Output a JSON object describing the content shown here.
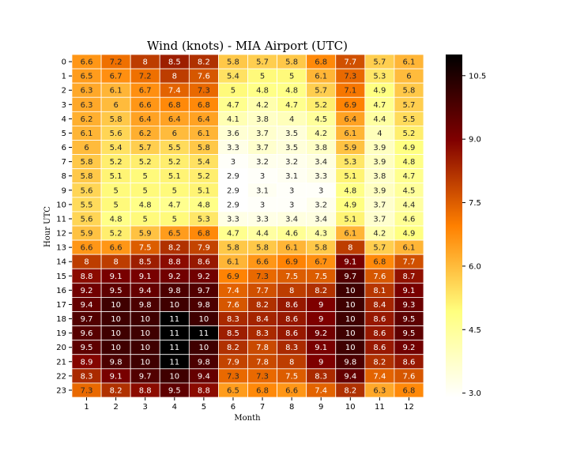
{
  "chart_data": {
    "type": "heatmap",
    "title": "Wind (knots) - MIA Airport (UTC)",
    "xlabel": "Month",
    "ylabel": "Hour UTC",
    "x_categories": [
      "1",
      "2",
      "3",
      "4",
      "5",
      "6",
      "7",
      "8",
      "9",
      "10",
      "11",
      "12"
    ],
    "y_categories": [
      "0",
      "1",
      "2",
      "3",
      "4",
      "5",
      "6",
      "7",
      "8",
      "9",
      "10",
      "11",
      "12",
      "13",
      "14",
      "15",
      "16",
      "17",
      "18",
      "19",
      "20",
      "21",
      "22",
      "23"
    ],
    "values": [
      [
        6.6,
        7.2,
        8,
        8.5,
        8.2,
        5.8,
        5.7,
        5.8,
        6.8,
        7.7,
        5.7,
        6.1
      ],
      [
        6.5,
        6.7,
        7.2,
        8,
        7.6,
        5.4,
        5,
        5,
        6.1,
        7.3,
        5.3,
        6
      ],
      [
        6.3,
        6.1,
        6.7,
        7.4,
        7.3,
        5,
        4.8,
        4.8,
        5.7,
        7.1,
        4.9,
        5.8
      ],
      [
        6.3,
        6,
        6.6,
        6.8,
        6.8,
        4.7,
        4.2,
        4.7,
        5.2,
        6.9,
        4.7,
        5.7
      ],
      [
        6.2,
        5.8,
        6.4,
        6.4,
        6.4,
        4.1,
        3.8,
        4,
        4.5,
        6.4,
        4.4,
        5.5
      ],
      [
        6.1,
        5.6,
        6.2,
        6,
        6.1,
        3.6,
        3.7,
        3.5,
        4.2,
        6.1,
        4,
        5.2
      ],
      [
        6,
        5.4,
        5.7,
        5.5,
        5.8,
        3.3,
        3.7,
        3.5,
        3.8,
        5.9,
        3.9,
        4.9
      ],
      [
        5.8,
        5.2,
        5.2,
        5.2,
        5.4,
        3,
        3.2,
        3.2,
        3.4,
        5.3,
        3.9,
        4.8
      ],
      [
        5.8,
        5.1,
        5,
        5.1,
        5.2,
        2.9,
        3,
        3.1,
        3.3,
        5.1,
        3.8,
        4.7
      ],
      [
        5.6,
        5,
        5,
        5,
        5.1,
        2.9,
        3.1,
        3,
        3,
        4.8,
        3.9,
        4.5
      ],
      [
        5.5,
        5,
        4.8,
        4.7,
        4.8,
        2.9,
        3,
        3,
        3.2,
        4.9,
        3.7,
        4.4
      ],
      [
        5.6,
        4.8,
        5,
        5,
        5.3,
        3.3,
        3.3,
        3.4,
        3.4,
        5.1,
        3.7,
        4.6
      ],
      [
        5.9,
        5.2,
        5.9,
        6.5,
        6.8,
        4.7,
        4.4,
        4.6,
        4.3,
        6.1,
        4.2,
        4.9
      ],
      [
        6.6,
        6.6,
        7.5,
        8.2,
        7.9,
        5.8,
        5.8,
        6.1,
        5.8,
        8,
        5.7,
        6.1
      ],
      [
        8,
        8,
        8.5,
        8.8,
        8.6,
        6.1,
        6.6,
        6.9,
        6.7,
        9.1,
        6.8,
        7.7
      ],
      [
        8.8,
        9.1,
        9.1,
        9.2,
        9.2,
        6.9,
        7.3,
        7.5,
        7.5,
        9.7,
        7.6,
        8.7
      ],
      [
        9.2,
        9.5,
        9.4,
        9.8,
        9.7,
        7.4,
        7.7,
        8,
        8.2,
        10,
        8.1,
        9.1
      ],
      [
        9.4,
        10,
        9.8,
        10,
        9.8,
        7.6,
        8.2,
        8.6,
        9,
        10,
        8.4,
        9.3
      ],
      [
        9.7,
        10,
        10,
        11,
        10,
        8.3,
        8.4,
        8.6,
        9,
        10,
        8.6,
        9.5
      ],
      [
        9.6,
        10,
        10,
        11,
        11,
        8.5,
        8.3,
        8.6,
        9.2,
        10,
        8.6,
        9.5
      ],
      [
        9.5,
        10,
        10,
        11,
        10,
        8.2,
        7.8,
        8.3,
        9.1,
        10,
        8.6,
        9.2
      ],
      [
        8.9,
        9.8,
        10,
        11,
        9.8,
        7.9,
        7.8,
        8,
        9,
        9.8,
        8.2,
        8.6
      ],
      [
        8.3,
        9.1,
        9.7,
        10,
        9.4,
        7.3,
        7.3,
        7.5,
        8.3,
        9.4,
        7.4,
        7.6
      ],
      [
        7.3,
        8.2,
        8.8,
        9.5,
        8.8,
        6.5,
        6.8,
        6.6,
        7.4,
        8.2,
        6.3,
        6.8
      ]
    ],
    "colormap": "afmhot_r",
    "colorbar": {
      "range": [
        2.9,
        11
      ],
      "ticks": [
        3.0,
        4.5,
        6.0,
        7.5,
        9.0,
        10.5
      ],
      "tick_labels": [
        "3.0",
        "4.5",
        "6.0",
        "7.5",
        "9.0",
        "10.5"
      ]
    },
    "cell_border_color": "#ffffff"
  }
}
